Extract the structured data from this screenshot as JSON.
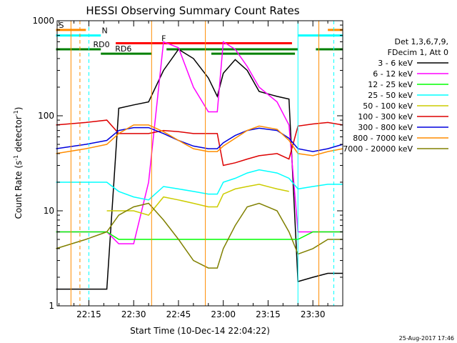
{
  "chart_data": {
    "type": "line",
    "title": "HESSI Observing Summary Count Rates",
    "xlabel": "Start Time (10-Dec-14 22:04:22)",
    "ylabel_main": "Count Rate (s",
    "ylabel_sup1": "-1",
    "ylabel_mid": " detector",
    "ylabel_sup2": "-1",
    "ylabel_end": ")",
    "yscale": "log",
    "ylim": [
      1,
      1000
    ],
    "xlim": [
      "22:04:22",
      "23:40:00"
    ],
    "x_tick_labels": [
      "22:15",
      "22:30",
      "22:45",
      "23:00",
      "23:15",
      "23:30"
    ],
    "y_tick_labels": [
      "1",
      "10",
      "100",
      "1000"
    ],
    "header": [
      "Det 1,3,6,7,9,",
      "FDecim 1, Att 0"
    ],
    "legend_position": "right",
    "footer": "25-Aug-2017 17:46",
    "flag_labels": [
      "S",
      "N",
      "F",
      "RD0",
      "RD6"
    ],
    "series": [
      {
        "name": "3 - 6 keV",
        "color": "#000000",
        "x": [
          "22:04",
          "22:14",
          "22:21",
          "22:25",
          "22:30",
          "22:35",
          "22:40",
          "22:45",
          "22:50",
          "22:55",
          "22:58",
          "23:00",
          "23:04",
          "23:08",
          "23:12",
          "23:18",
          "23:22",
          "23:25",
          "23:30",
          "23:35",
          "23:40"
        ],
        "y": [
          1.5,
          1.5,
          1.5,
          120,
          130,
          140,
          300,
          500,
          400,
          250,
          160,
          280,
          390,
          300,
          180,
          160,
          150,
          1.8,
          2.0,
          2.2,
          2.2
        ]
      },
      {
        "name": "6 - 12 keV",
        "color": "#ff00ff",
        "x": [
          "22:04",
          "22:14",
          "22:21",
          "22:25",
          "22:30",
          "22:35",
          "22:40",
          "22:45",
          "22:50",
          "22:55",
          "22:58",
          "23:00",
          "23:04",
          "23:08",
          "23:12",
          "23:18",
          "23:22",
          "23:25",
          "23:30",
          "23:35",
          "23:40"
        ],
        "y": [
          6,
          6,
          6,
          4.5,
          4.5,
          20,
          600,
          520,
          200,
          110,
          110,
          600,
          500,
          330,
          200,
          140,
          80,
          6,
          6,
          6,
          6
        ]
      },
      {
        "name": "12 - 25 keV",
        "color": "#00ff00",
        "x": [
          "22:04",
          "22:14",
          "22:21",
          "22:25",
          "22:30",
          "22:35",
          "22:40",
          "22:45",
          "22:50",
          "22:55",
          "22:58",
          "23:00",
          "23:04",
          "23:08",
          "23:12",
          "23:18",
          "23:22",
          "23:25",
          "23:30",
          "23:35",
          "23:40"
        ],
        "y": [
          6,
          6,
          6,
          5,
          5,
          5,
          5,
          5,
          5,
          5,
          5,
          5,
          5,
          5,
          5,
          5,
          5,
          5,
          6,
          6,
          6
        ]
      },
      {
        "name": "25 - 50 keV",
        "color": "#00ffff",
        "x": [
          "22:04",
          "22:14",
          "22:21",
          "22:25",
          "22:30",
          "22:35",
          "22:40",
          "22:45",
          "22:50",
          "22:55",
          "22:58",
          "23:00",
          "23:04",
          "23:08",
          "23:12",
          "23:18",
          "23:22",
          "23:25",
          "23:30",
          "23:35",
          "23:40"
        ],
        "y": [
          20,
          20,
          20,
          16,
          14,
          13,
          18,
          17,
          16,
          15,
          15,
          20,
          22,
          25,
          27,
          25,
          22,
          17,
          18,
          19,
          19
        ]
      },
      {
        "name": "50 - 100 keV",
        "color": "#cccc00",
        "x": [
          "22:21",
          "22:25",
          "22:30",
          "22:35",
          "22:40",
          "22:45",
          "22:50",
          "22:55",
          "22:58",
          "23:00",
          "23:04",
          "23:08",
          "23:12",
          "23:18",
          "23:22"
        ],
        "y": [
          10,
          10,
          10,
          9,
          14,
          13,
          12,
          11,
          11,
          15,
          17,
          18,
          19,
          17,
          16
        ]
      },
      {
        "name": "100 - 300 keV",
        "color": "#dd0000",
        "x": [
          "22:04",
          "22:14",
          "22:21",
          "22:25",
          "22:30",
          "22:35",
          "22:40",
          "22:45",
          "22:50",
          "22:55",
          "22:58",
          "23:00",
          "23:04",
          "23:08",
          "23:12",
          "23:18",
          "23:22",
          "23:25",
          "23:30",
          "23:35",
          "23:40"
        ],
        "y": [
          80,
          85,
          90,
          65,
          65,
          65,
          70,
          68,
          65,
          65,
          65,
          30,
          32,
          35,
          38,
          40,
          35,
          78,
          82,
          85,
          80
        ]
      },
      {
        "name": "300 - 800 keV",
        "color": "#0000dd",
        "x": [
          "22:04",
          "22:14",
          "22:21",
          "22:25",
          "22:30",
          "22:35",
          "22:40",
          "22:45",
          "22:50",
          "22:55",
          "22:58",
          "23:00",
          "23:04",
          "23:08",
          "23:12",
          "23:18",
          "23:22",
          "23:25",
          "23:30",
          "23:35",
          "23:40"
        ],
        "y": [
          45,
          50,
          55,
          70,
          75,
          75,
          65,
          55,
          48,
          45,
          45,
          52,
          62,
          70,
          74,
          70,
          58,
          45,
          42,
          45,
          50
        ]
      },
      {
        "name": "800 - 7000 keV",
        "color": "#ff8c00",
        "x": [
          "22:04",
          "22:14",
          "22:21",
          "22:25",
          "22:30",
          "22:35",
          "22:40",
          "22:45",
          "22:50",
          "22:55",
          "22:58",
          "23:00",
          "23:04",
          "23:08",
          "23:12",
          "23:18",
          "23:22",
          "23:25",
          "23:30",
          "23:35",
          "23:40"
        ],
        "y": [
          40,
          45,
          50,
          65,
          80,
          80,
          68,
          55,
          45,
          42,
          42,
          48,
          58,
          70,
          78,
          72,
          55,
          40,
          38,
          42,
          45
        ]
      },
      {
        "name": "7000 - 20000 keV",
        "color": "#808000",
        "x": [
          "22:04",
          "22:14",
          "22:21",
          "22:25",
          "22:30",
          "22:35",
          "22:40",
          "22:45",
          "22:50",
          "22:55",
          "22:58",
          "23:00",
          "23:04",
          "23:08",
          "23:12",
          "23:18",
          "23:22",
          "23:25",
          "23:30",
          "23:35",
          "23:40"
        ],
        "y": [
          4,
          5,
          6,
          9,
          11,
          12,
          8,
          5,
          3,
          2.5,
          2.5,
          4,
          7,
          11,
          12,
          10,
          6,
          3.5,
          4,
          5,
          5
        ]
      }
    ],
    "flags": [
      {
        "name": "S",
        "color": "#ff8c00",
        "value": 800,
        "segments": [
          [
            "22:04",
            "22:14"
          ],
          [
            "23:35",
            "23:40"
          ]
        ]
      },
      {
        "name": "N",
        "color": "#00ffff",
        "value": 700,
        "segments": [
          [
            "22:04",
            "22:19"
          ],
          [
            "23:25",
            "23:40"
          ]
        ]
      },
      {
        "name": "F",
        "color": "#ff0000",
        "value": 580,
        "segments": [
          [
            "22:24",
            "23:23"
          ]
        ]
      },
      {
        "name": "RD0",
        "color": "#008000",
        "value": 500,
        "segments": [
          [
            "22:04",
            "22:19"
          ],
          [
            "22:41",
            "23:25"
          ],
          [
            "23:31",
            "23:40"
          ]
        ]
      },
      {
        "name": "RD6",
        "color": "#008000",
        "value": 450,
        "segments": [
          [
            "22:19",
            "22:36"
          ],
          [
            "22:56",
            "23:24"
          ]
        ]
      }
    ],
    "vlines": [
      {
        "t": "22:09",
        "color": "#ff8c00",
        "style": "solid"
      },
      {
        "t": "22:12",
        "color": "#ff8c00",
        "style": "dashed"
      },
      {
        "t": "22:15",
        "color": "#00ffff",
        "style": "dashed"
      },
      {
        "t": "22:36",
        "color": "#ff8c00",
        "style": "solid"
      },
      {
        "t": "22:54",
        "color": "#ff8c00",
        "style": "solid"
      },
      {
        "t": "23:25",
        "color": "#00ffff",
        "style": "solid"
      },
      {
        "t": "23:32",
        "color": "#ff8c00",
        "style": "solid"
      },
      {
        "t": "23:37",
        "color": "#00ffff",
        "style": "dashed"
      }
    ]
  }
}
